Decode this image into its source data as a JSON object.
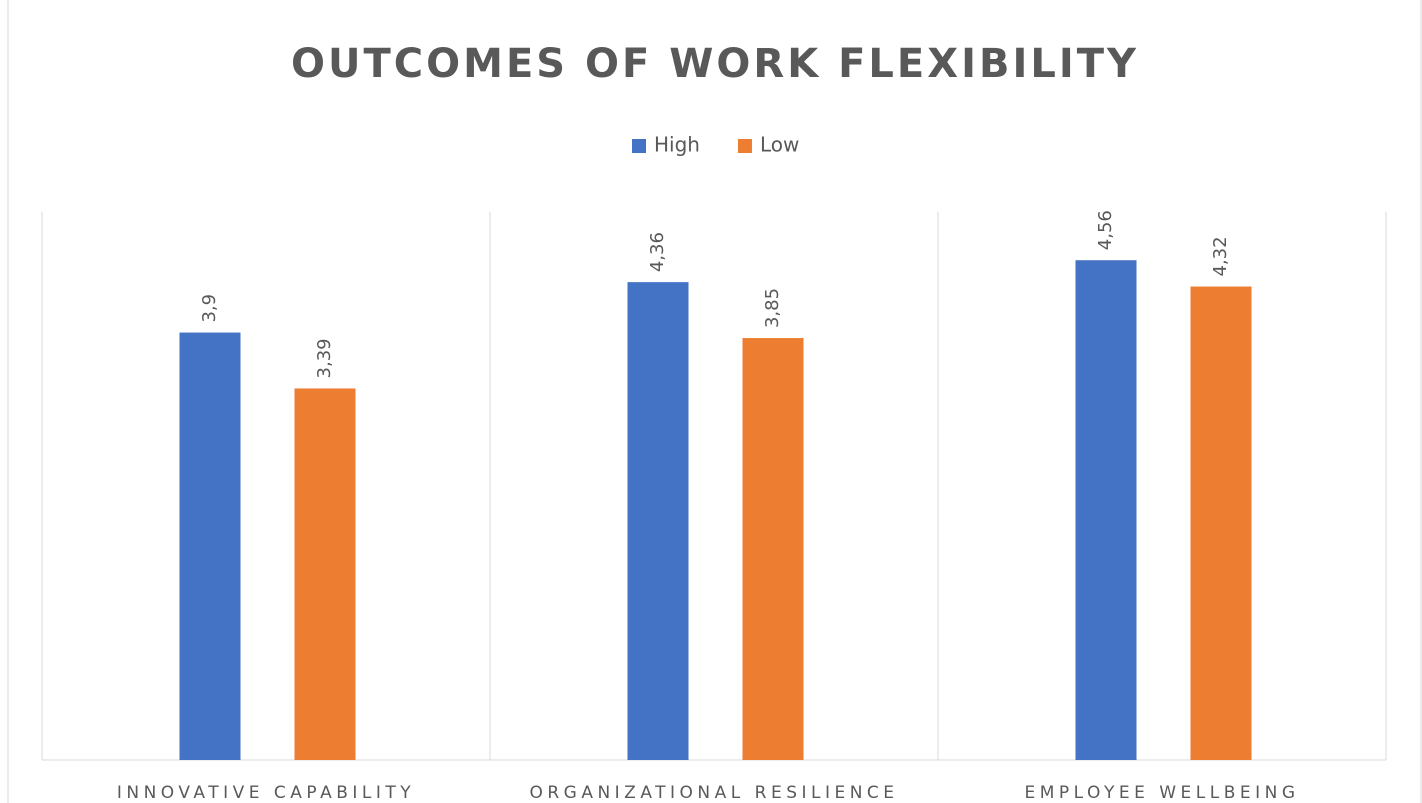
{
  "chart_data": {
    "type": "bar",
    "title": "OUTCOMES OF WORK FLEXIBILITY",
    "categories": [
      "INNOVATIVE CAPABILITY",
      "ORGANIZATIONAL RESILIENCE",
      "EMPLOYEE WELLBEING"
    ],
    "series": [
      {
        "name": "High",
        "color": "#4472c4",
        "values": [
          3.9,
          4.36,
          4.56
        ],
        "value_labels": [
          "3,9",
          "4,36",
          "4,56"
        ]
      },
      {
        "name": "Low",
        "color": "#ed7d31",
        "values": [
          3.39,
          3.85,
          4.32
        ],
        "value_labels": [
          "3,39",
          "3,85",
          "4,32"
        ]
      }
    ],
    "ylim": [
      0,
      5
    ],
    "legend": "top"
  }
}
